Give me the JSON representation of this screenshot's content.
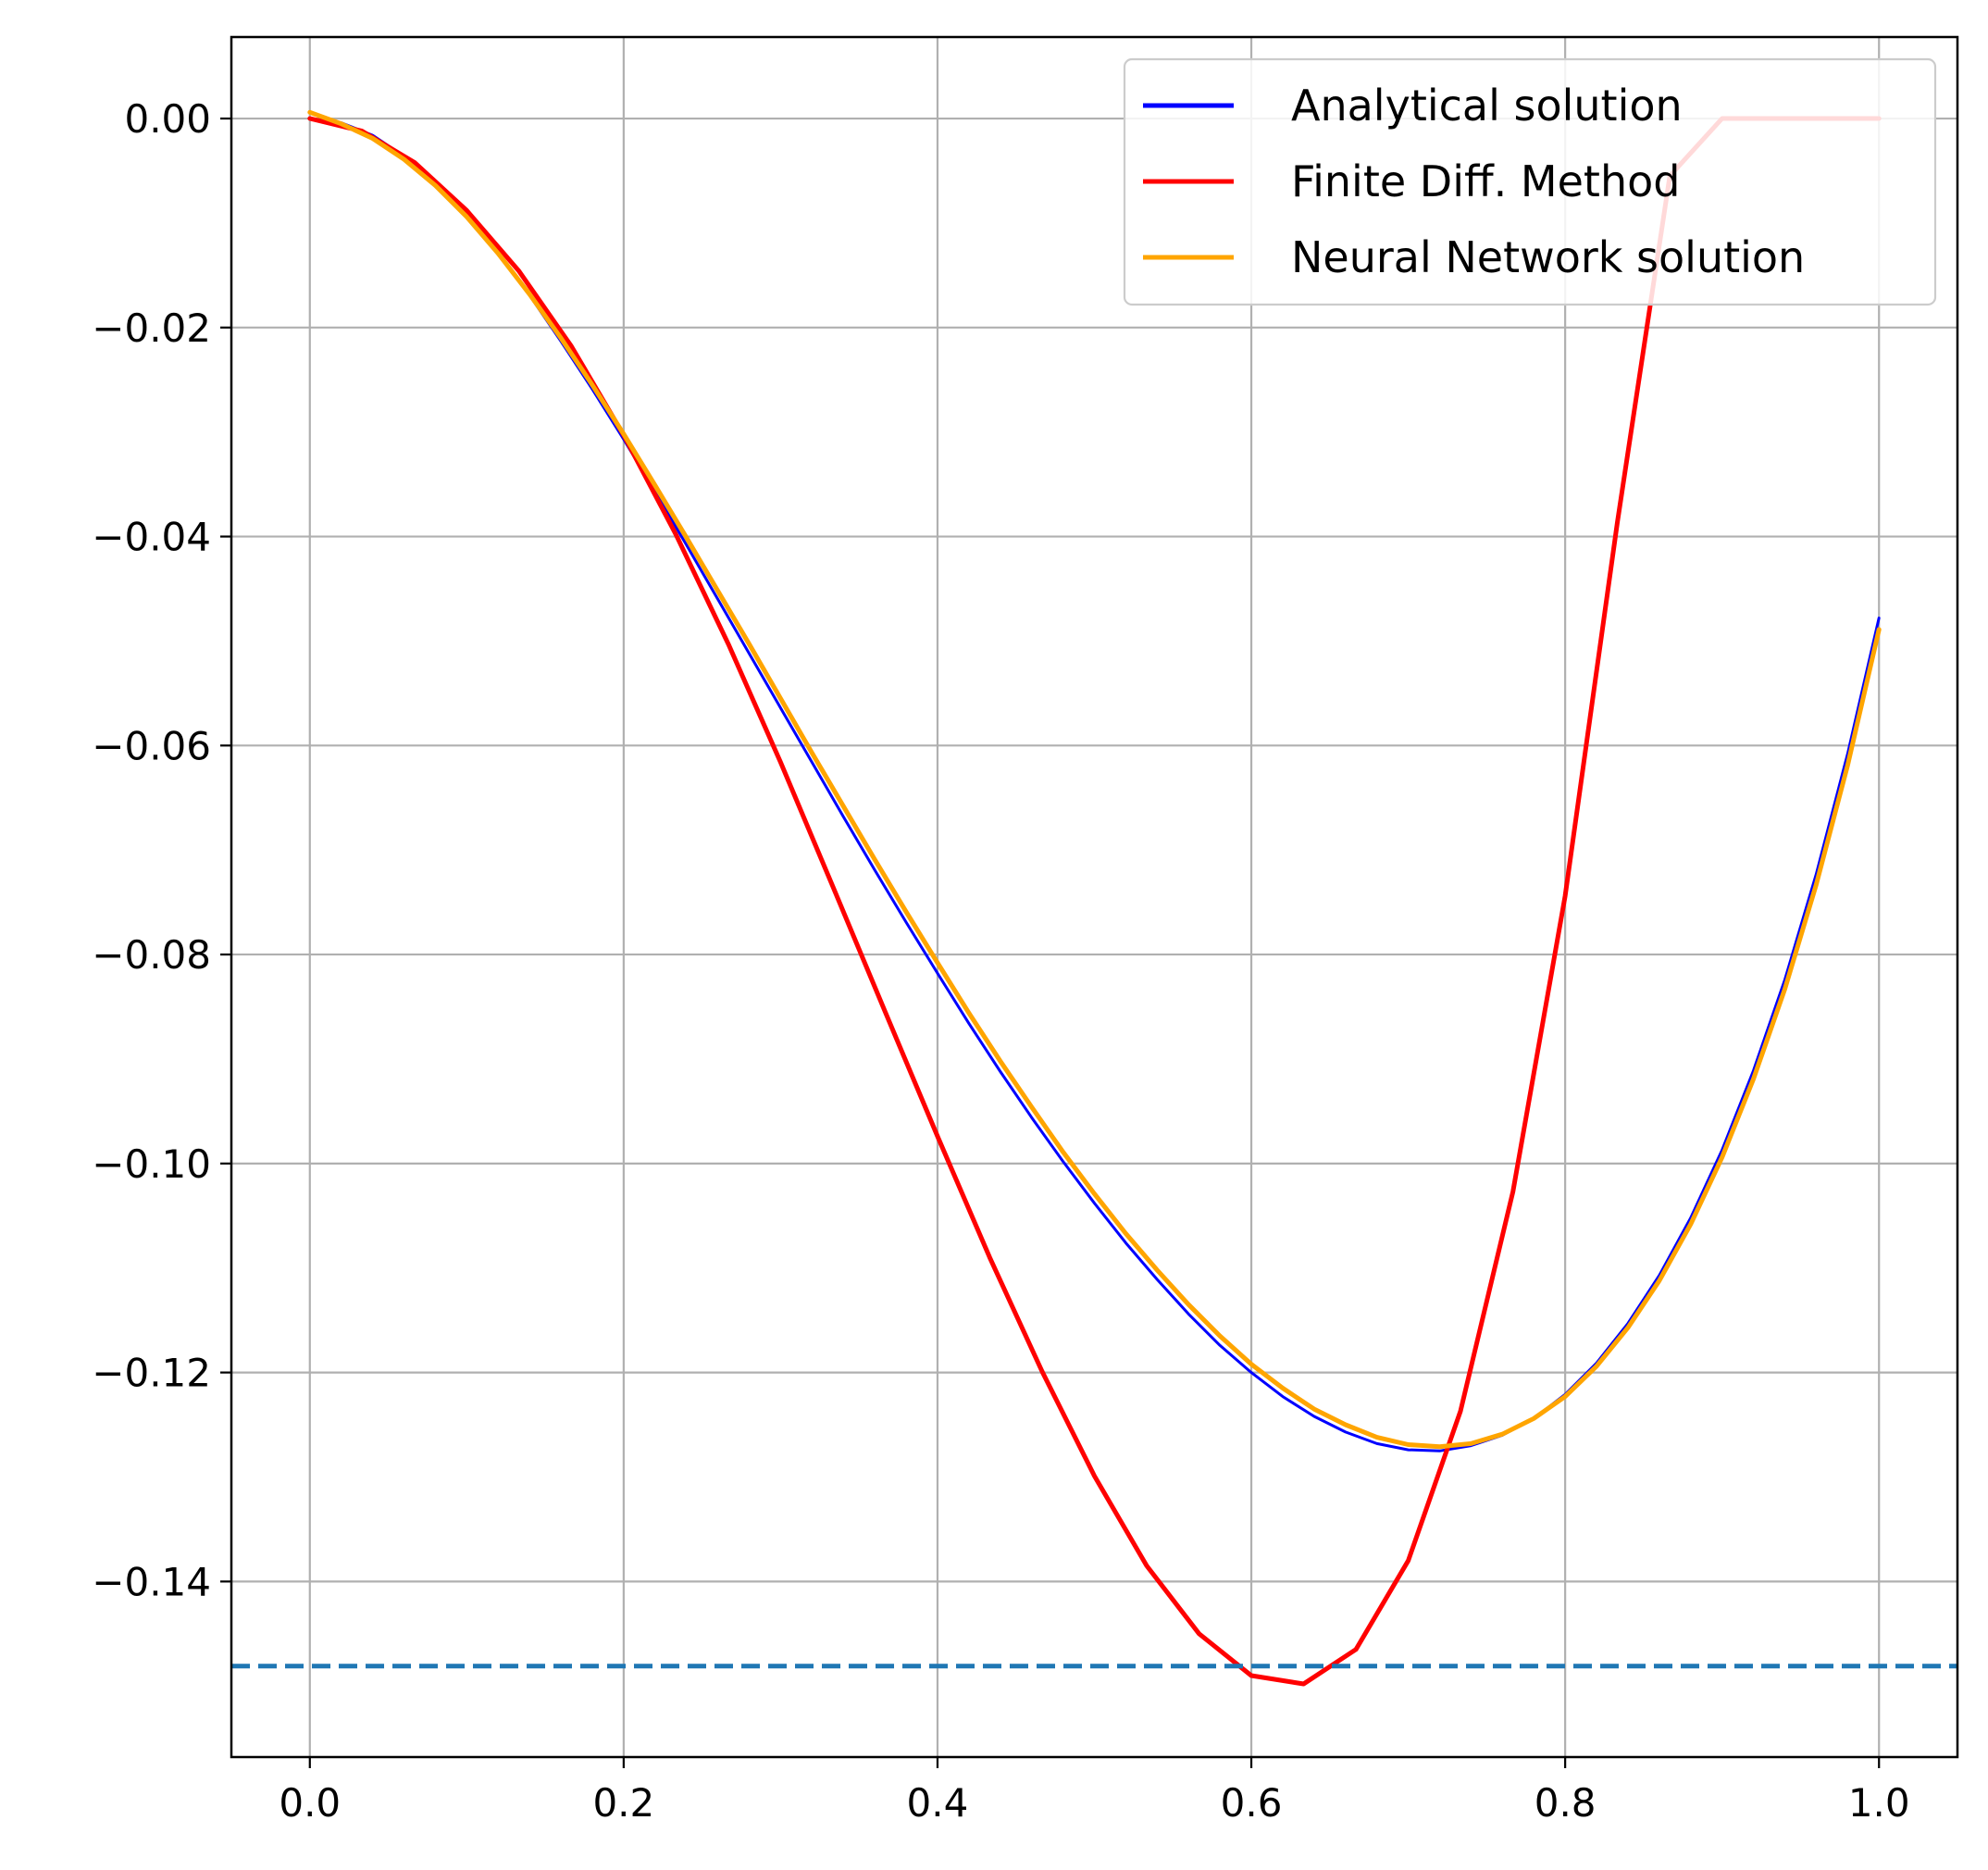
{
  "chart_data": {
    "type": "line",
    "title": "",
    "xlabel": "",
    "ylabel": "",
    "xlim": [
      -0.05,
      1.05
    ],
    "ylim": [
      -0.1568,
      0.0078
    ],
    "grid": true,
    "legend_position": "top-right",
    "x_ticks": [
      0.0,
      0.2,
      0.4,
      0.6,
      0.8,
      1.0
    ],
    "x_tick_labels": [
      "0.0",
      "0.2",
      "0.4",
      "0.6",
      "0.8",
      "1.0"
    ],
    "y_ticks": [
      0.0,
      -0.02,
      -0.04,
      -0.06,
      -0.08,
      -0.1,
      -0.12,
      -0.14
    ],
    "y_tick_labels": [
      "0.00",
      "−0.02",
      "−0.04",
      "−0.06",
      "−0.08",
      "−0.10",
      "−0.12",
      "−0.14"
    ],
    "series": [
      {
        "name": "Analytical solution",
        "color": "#0000ff",
        "x": [
          0.0,
          0.02,
          0.04,
          0.06,
          0.08,
          0.1,
          0.12,
          0.14,
          0.16,
          0.18,
          0.2,
          0.22,
          0.24,
          0.26,
          0.28,
          0.3,
          0.32,
          0.34,
          0.36,
          0.38,
          0.4,
          0.42,
          0.44,
          0.46,
          0.48,
          0.5,
          0.52,
          0.54,
          0.56,
          0.58,
          0.6,
          0.62,
          0.64,
          0.66,
          0.68,
          0.7,
          0.72,
          0.74,
          0.76,
          0.78,
          0.8,
          0.82,
          0.84,
          0.86,
          0.88,
          0.9,
          0.92,
          0.94,
          0.96,
          0.98,
          1.0
        ],
        "y": [
          0.0,
          -0.0004,
          -0.0016,
          -0.0036,
          -0.0062,
          -0.0093,
          -0.0129,
          -0.0169,
          -0.0213,
          -0.0259,
          -0.0307,
          -0.0357,
          -0.0408,
          -0.046,
          -0.0512,
          -0.0564,
          -0.0616,
          -0.0668,
          -0.0719,
          -0.0769,
          -0.0818,
          -0.0866,
          -0.0912,
          -0.0956,
          -0.0998,
          -0.1038,
          -0.1076,
          -0.1111,
          -0.1144,
          -0.1174,
          -0.12,
          -0.1223,
          -0.1242,
          -0.1257,
          -0.1268,
          -0.1274,
          -0.1275,
          -0.127,
          -0.126,
          -0.1244,
          -0.1221,
          -0.1191,
          -0.1153,
          -0.1107,
          -0.1052,
          -0.0987,
          -0.0911,
          -0.0824,
          -0.0723,
          -0.0608,
          -0.0478
        ]
      },
      {
        "name": "Finite Diff. Method",
        "color": "#ff0000",
        "x": [
          0.0,
          0.0333,
          0.0667,
          0.1,
          0.1333,
          0.1667,
          0.2,
          0.2333,
          0.2667,
          0.3,
          0.3333,
          0.3667,
          0.4,
          0.4333,
          0.4667,
          0.5,
          0.5333,
          0.5667,
          0.6,
          0.6333,
          0.6667,
          0.7,
          0.7333,
          0.7667,
          0.8,
          0.8333,
          0.8667,
          0.9,
          0.9333,
          0.9667,
          1.0
        ],
        "y": [
          0.0,
          -0.0012,
          -0.0042,
          -0.0088,
          -0.0146,
          -0.0218,
          -0.0303,
          -0.0398,
          -0.0503,
          -0.0616,
          -0.0735,
          -0.0855,
          -0.0974,
          -0.109,
          -0.1199,
          -0.1299,
          -0.1385,
          -0.145,
          -0.149,
          -0.1498,
          -0.1465,
          -0.138,
          -0.1237,
          -0.1027,
          -0.0744,
          -0.0386,
          -0.0055,
          0.0,
          0.0,
          0.0,
          0.0
        ]
      },
      {
        "name": "Neural Network solution",
        "color": "#ffa500",
        "x": [
          0.0,
          0.02,
          0.04,
          0.06,
          0.08,
          0.1,
          0.12,
          0.14,
          0.16,
          0.18,
          0.2,
          0.22,
          0.24,
          0.26,
          0.28,
          0.3,
          0.32,
          0.34,
          0.36,
          0.38,
          0.4,
          0.42,
          0.44,
          0.46,
          0.48,
          0.5,
          0.52,
          0.54,
          0.56,
          0.58,
          0.6,
          0.62,
          0.64,
          0.66,
          0.68,
          0.7,
          0.72,
          0.74,
          0.76,
          0.78,
          0.8,
          0.82,
          0.84,
          0.86,
          0.88,
          0.9,
          0.92,
          0.94,
          0.96,
          0.98,
          1.0
        ],
        "y": [
          0.0006,
          -0.0005,
          -0.0019,
          -0.0039,
          -0.0064,
          -0.0094,
          -0.0129,
          -0.0168,
          -0.021,
          -0.0255,
          -0.0302,
          -0.0351,
          -0.0401,
          -0.0452,
          -0.0503,
          -0.0555,
          -0.0607,
          -0.0658,
          -0.0709,
          -0.0759,
          -0.0808,
          -0.0856,
          -0.0902,
          -0.0946,
          -0.0989,
          -0.1029,
          -0.1067,
          -0.1102,
          -0.1135,
          -0.1165,
          -0.1192,
          -0.1215,
          -0.1235,
          -0.125,
          -0.1262,
          -0.1269,
          -0.1271,
          -0.1268,
          -0.1259,
          -0.1244,
          -0.1223,
          -0.1194,
          -0.1157,
          -0.1112,
          -0.1058,
          -0.0994,
          -0.0919,
          -0.0833,
          -0.0733,
          -0.0619,
          -0.0489
        ]
      }
    ],
    "reference_line": {
      "orientation": "horizontal",
      "y": -0.1481,
      "style": "dashed",
      "color": "#1f77b4"
    }
  }
}
